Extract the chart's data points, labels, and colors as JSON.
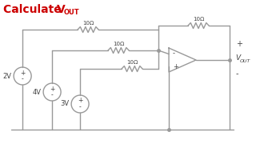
{
  "title_calculate": "Calculate ",
  "title_vout": "V",
  "title_out": "OUT",
  "title_color": "#cc0000",
  "bg_color": "#ffffff",
  "line_color": "#999999",
  "text_color": "#444444",
  "resistor_labels": [
    "10Ω",
    "10Ω",
    "10Ω",
    "10Ω"
  ],
  "vout_label": "V",
  "vout_sub": "OUT",
  "plus_label": "+",
  "minus_label": "-"
}
